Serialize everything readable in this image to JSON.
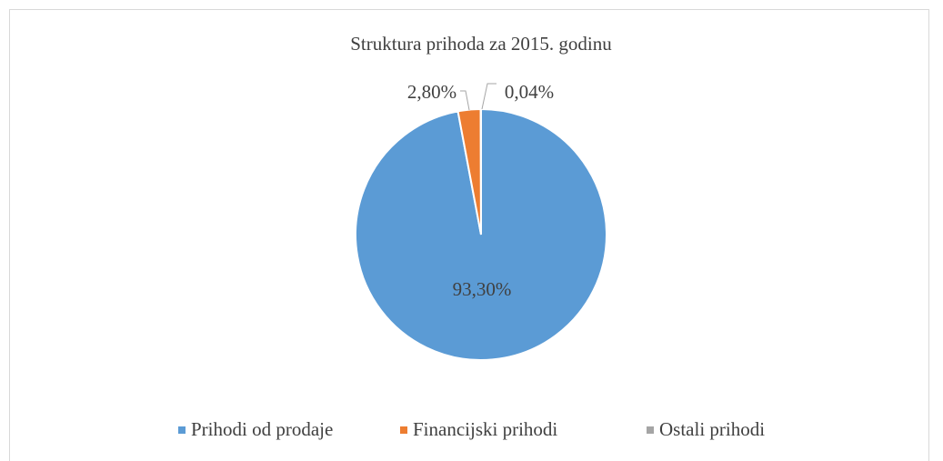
{
  "chart_data": {
    "type": "pie",
    "title": "Struktura prihoda za 2015. godinu",
    "categories": [
      "Prihodi od prodaje",
      "Financijski prihodi",
      "Ostali prihodi"
    ],
    "values": [
      93.3,
      2.8,
      0.04
    ],
    "value_labels": [
      "93,30%",
      "2,80%",
      "0,04%"
    ],
    "colors": [
      "#5b9bd5",
      "#ed7d31",
      "#a5a5a5"
    ],
    "legend": "bottom"
  }
}
